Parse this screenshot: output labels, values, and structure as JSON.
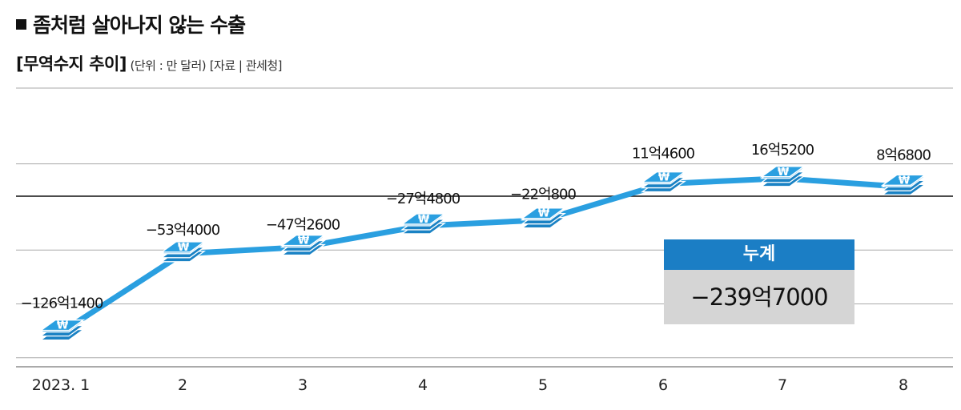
{
  "header": {
    "title": "좀처럼 살아나지 않는 수출",
    "subtitle_main": "[무역수지 추이]",
    "subtitle_unit": "(단위 : 만 달러)",
    "subtitle_source": "[자료 | 관세청]"
  },
  "total": {
    "label": "누계",
    "value": "−239억7000"
  },
  "colors": {
    "line": "#2a9fe0",
    "icon": "#2a9fe0",
    "total_header": "#1b7ec5",
    "total_body": "#d5d5d5",
    "zero_line": "#111111",
    "grid": "#aaaaaa"
  },
  "icon_name": "won-banknote-stack-icon",
  "chart_data": {
    "type": "line",
    "title": "무역수지 추이",
    "unit": "만 달러",
    "categories": [
      "2023. 1",
      "2",
      "3",
      "4",
      "5",
      "6",
      "7",
      "8"
    ],
    "values": [
      -1261400,
      -534000,
      -472600,
      -274800,
      -220800,
      114600,
      165200,
      86800
    ],
    "data_labels": [
      "−126억1400",
      "−53억4000",
      "−47억2600",
      "−27억4800",
      "−22억800",
      "11억4600",
      "16억5200",
      "8억6800"
    ],
    "ylim": [
      -1300000,
      400000
    ],
    "grid": true,
    "zero_line": true
  }
}
